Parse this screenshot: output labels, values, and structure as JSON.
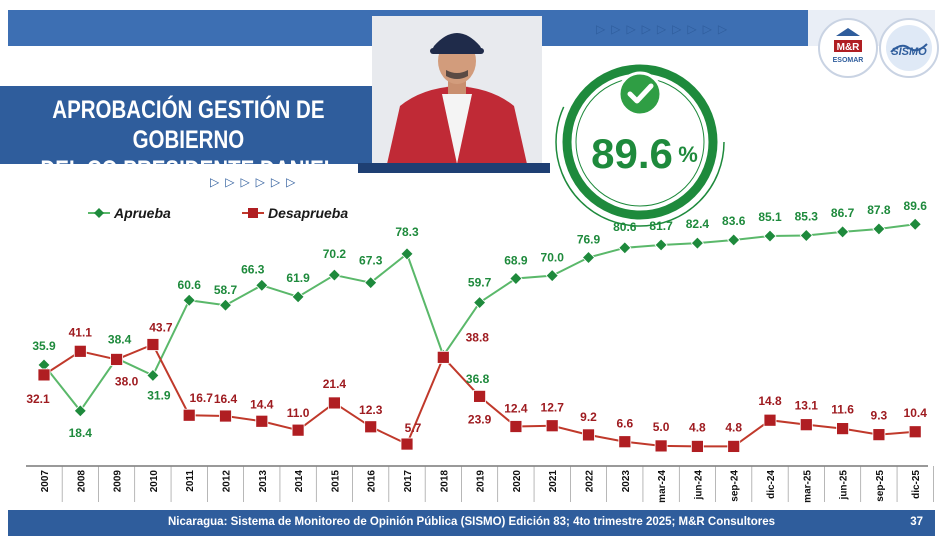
{
  "header": {
    "title_line1": "APROBACIÓN GESTIÓN DE GOBIERNO",
    "title_line2": "DEL CO PRESIDENTE DANIEL ORTEGA",
    "big_value": "89.6",
    "big_value_unit": "%",
    "logo_left_line1": "M&R",
    "logo_left_line2": "ESOMAR",
    "logo_right": "SISMO"
  },
  "footer": {
    "source": "Nicaragua: Sistema de Monitoreo de Opinión Pública (SISMO) Edición 83; 4to trimestre 2025; M&R Consultores",
    "page": "37"
  },
  "colors": {
    "approve": "#1e8a3c",
    "approve_line": "#5ab86a",
    "disapprove": "#b01e22",
    "band": "#3d6fb3",
    "footer": "#2f5d9c"
  },
  "chart_data": {
    "type": "line",
    "categories": [
      "2007",
      "2008",
      "2009",
      "2010",
      "2011",
      "2012",
      "2013",
      "2014",
      "2015",
      "2016",
      "2017",
      "2018",
      "2019",
      "2020",
      "2021",
      "2022",
      "2023",
      "mar-24",
      "jun-24",
      "sep-24",
      "dic-24",
      "mar-25",
      "jun-25",
      "sep-25",
      "dic-25"
    ],
    "series": [
      {
        "name": "Aprueba",
        "values": [
          35.9,
          18.4,
          38.4,
          31.9,
          60.6,
          58.7,
          66.3,
          61.9,
          70.2,
          67.3,
          78.3,
          39.5,
          59.7,
          68.9,
          70.0,
          76.9,
          80.6,
          81.7,
          82.4,
          83.6,
          85.1,
          85.3,
          86.7,
          87.8,
          89.6
        ],
        "labels": [
          "35.9",
          "18.4",
          "38.4",
          "31.9",
          "60.6",
          "58.7",
          "66.3",
          "61.9",
          "70.2",
          "67.3",
          "78.3",
          "",
          "59.7",
          "68.9",
          "70.0",
          "76.9",
          "80.6",
          "81.7",
          "82.4",
          "83.6",
          "85.1",
          "85.3",
          "86.7",
          "87.8",
          "89.6"
        ]
      },
      {
        "name": "Desaprueba",
        "values": [
          32.1,
          41.1,
          38.0,
          43.7,
          16.7,
          16.4,
          14.4,
          11.0,
          21.4,
          12.3,
          5.7,
          38.8,
          23.9,
          12.4,
          12.7,
          9.2,
          6.6,
          5.0,
          4.8,
          4.8,
          14.8,
          13.1,
          11.6,
          9.3,
          10.4
        ],
        "labels": [
          "32.1",
          "41.1",
          "38.0",
          "43.7",
          "16.7",
          "16.4",
          "14.4",
          "11.0",
          "21.4",
          "12.3",
          "5.7",
          "38.8",
          "23.9",
          "12.4",
          "12.7",
          "9.2",
          "6.6",
          "5.0",
          "4.8",
          "4.8",
          "14.8",
          "13.1",
          "11.6",
          "9.3",
          "10.4"
        ]
      }
    ],
    "extra_label": "36.8",
    "ylim": [
      0,
      95
    ],
    "grid": false,
    "legend": "top-left"
  }
}
